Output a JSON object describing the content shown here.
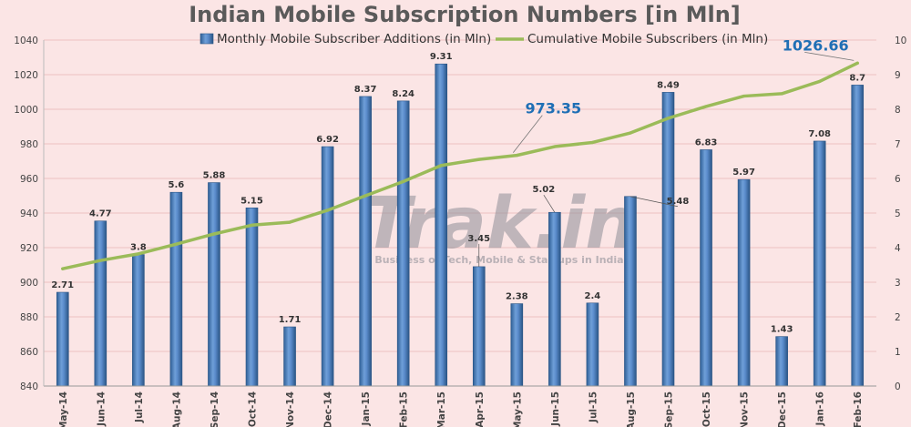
{
  "chart_data": {
    "type": "bar",
    "title": "Indian Mobile Subscription Numbers [in Mln]",
    "categories": [
      "May-14",
      "Jun-14",
      "Jul-14",
      "Aug-14",
      "Sep-14",
      "Oct-14",
      "Nov-14",
      "Dec-14",
      "Jan-15",
      "Feb-15",
      "Mar-15",
      "Apr-15",
      "May-15",
      "Jun-15",
      "Jul-15",
      "Aug-15",
      "Sep-15",
      "Oct-15",
      "Nov-15",
      "Dec-15",
      "Jan-16",
      "Feb-16"
    ],
    "series": [
      {
        "name": "Monthly Mobile Subscriber Additions (in Mln)",
        "type": "bar",
        "axis": "right",
        "color": "#4f81bd",
        "values": [
          2.71,
          4.77,
          3.8,
          5.6,
          5.88,
          5.15,
          1.71,
          6.92,
          8.37,
          8.24,
          9.31,
          3.45,
          2.38,
          5.02,
          2.4,
          5.48,
          8.49,
          6.83,
          5.97,
          1.43,
          7.08,
          8.7
        ],
        "labels": [
          "2.71",
          "4.77",
          "3.8",
          "5.6",
          "5.88",
          "5.15",
          "1.71",
          "6.92",
          "8.37",
          "8.24",
          "9.31",
          "3.45",
          "2.38",
          "5.02",
          "2.4",
          "5.48",
          "8.49",
          "6.83",
          "5.97",
          "1.43",
          "7.08",
          "8.7"
        ]
      },
      {
        "name": "Cumulative Mobile Subscribers (in Mln)",
        "type": "line",
        "axis": "left",
        "color": "#9bbb59",
        "values": [
          907.8,
          912.6,
          916.4,
          922.0,
          927.9,
          933.0,
          934.7,
          941.6,
          950.0,
          958.2,
          967.5,
          971.0,
          973.35,
          978.4,
          980.8,
          986.3,
          994.8,
          1001.6,
          1007.6,
          1009.0,
          1016.1,
          1026.66
        ]
      }
    ],
    "callouts": [
      {
        "text": "973.35",
        "index": 12
      },
      {
        "text": "1026.66",
        "index": 21
      }
    ],
    "ylim_left": [
      840,
      1040
    ],
    "yticks_left": [
      "840",
      "860",
      "880",
      "900",
      "920",
      "940",
      "960",
      "980",
      "1000",
      "1020",
      "1040"
    ],
    "ylim_right": [
      0,
      10
    ],
    "yticks_right": [
      "0",
      "1",
      "2",
      "3",
      "4",
      "5",
      "6",
      "7",
      "8",
      "9",
      "10"
    ],
    "grid": true,
    "legend_position": "top"
  },
  "watermark": {
    "text": "Trak.in",
    "tagline": "Business of Tech, Mobile & Startups in India"
  }
}
